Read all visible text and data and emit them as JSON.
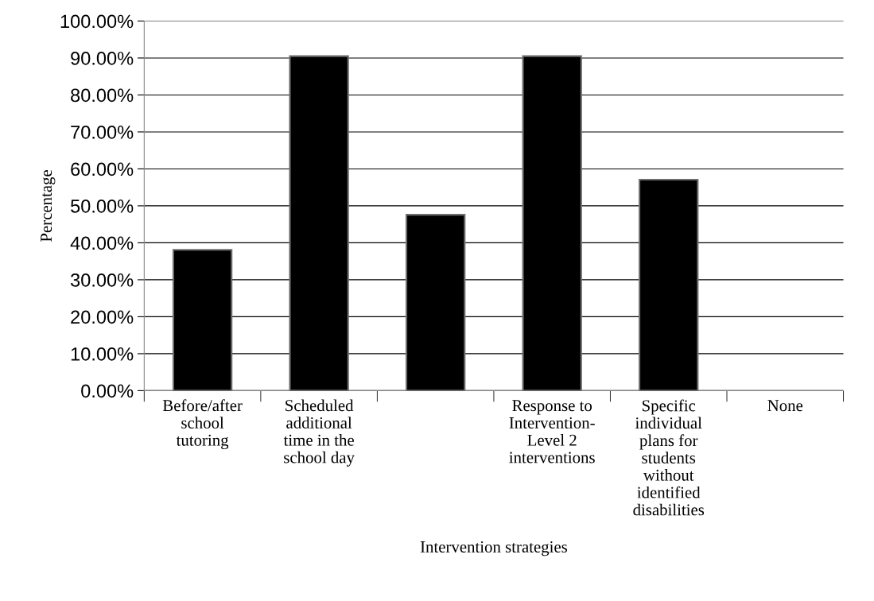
{
  "chart_data": {
    "type": "bar",
    "xlabel": "Intervention strategies",
    "ylabel": "Percentage",
    "categories": [
      "Before/after\nschool\ntutoring",
      "Scheduled\nadditional\ntime in the\nschool day",
      null,
      "Response to\nIntervention-\nLevel 2\ninterventions",
      "Specific\nindividual\nplans for\nstudents\nwithout\nidentified\ndisabilities",
      "None"
    ],
    "values": [
      38.1,
      90.5,
      47.6,
      90.5,
      57.1,
      0
    ],
    "color": "#000000",
    "ylim": [
      0,
      100
    ],
    "yticks": [
      {
        "value": 0,
        "label": "0.00%"
      },
      {
        "value": 10,
        "label": "10.00%"
      },
      {
        "value": 20,
        "label": "20.00%"
      },
      {
        "value": 30,
        "label": "30.00%"
      },
      {
        "value": 40,
        "label": "40.00%"
      },
      {
        "value": 50,
        "label": "50.00%"
      },
      {
        "value": 60,
        "label": "60.00%"
      },
      {
        "value": 70,
        "label": "70.00%"
      },
      {
        "value": 80,
        "label": "80.00%"
      },
      {
        "value": 90,
        "label": "90.00%"
      },
      {
        "value": 100,
        "label": "100.00%"
      }
    ],
    "grid": "y",
    "legend": false
  }
}
